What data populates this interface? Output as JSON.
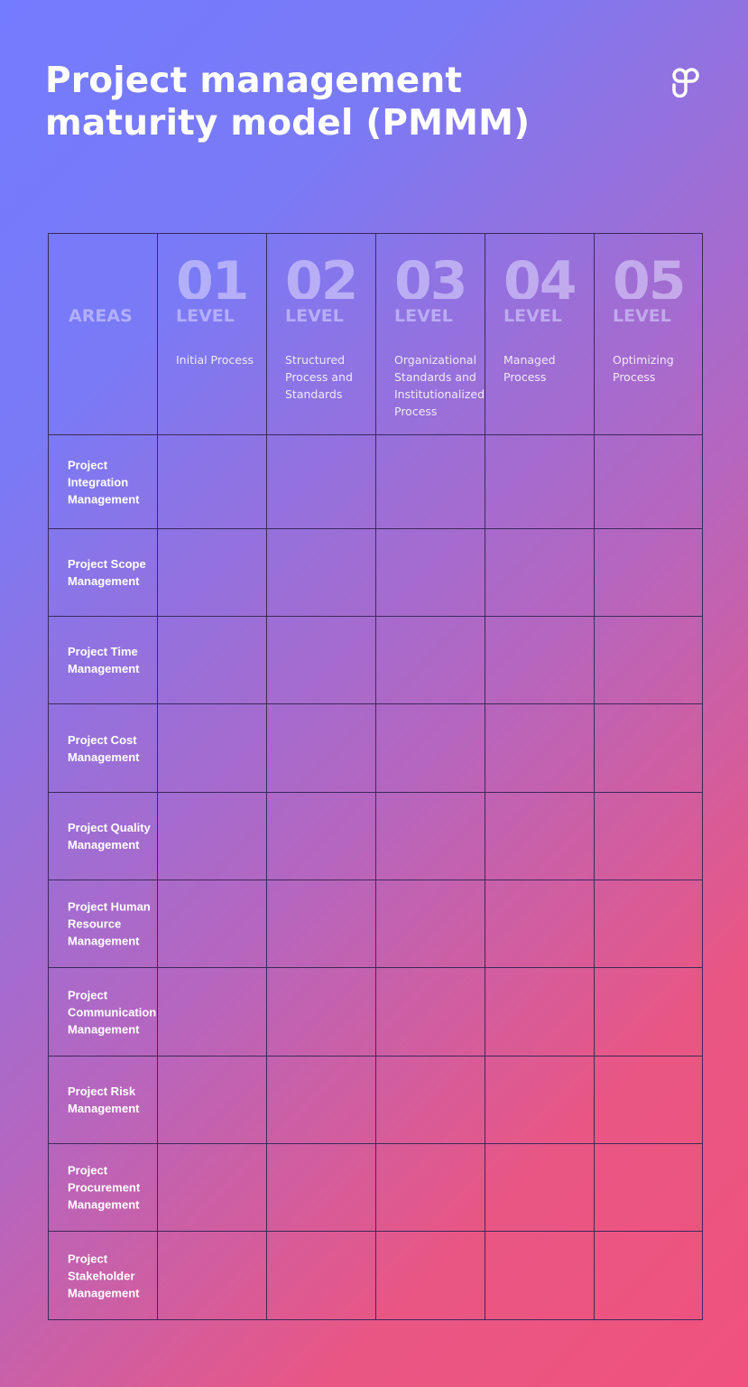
{
  "title_line1": "Project management",
  "title_line2": "maturity model (PMMM)",
  "header": {
    "areas_label": "AREAS",
    "levels": [
      {
        "number": "01",
        "label": "LEVEL",
        "description": "Initial Process"
      },
      {
        "number": "02",
        "label": "LEVEL",
        "description": "Structured Process and Standards"
      },
      {
        "number": "03",
        "label": "LEVEL",
        "description": "Organizational Standards and Institutionalized Process"
      },
      {
        "number": "04",
        "label": "LEVEL",
        "description": "Managed Process"
      },
      {
        "number": "05",
        "label": "LEVEL",
        "description": "Optimizing Process"
      }
    ]
  },
  "areas": [
    "Project Integration Management",
    "Project Scope Management",
    "Project Time Management",
    "Project Cost Management",
    "Project Quality Management",
    "Project Human Resource Management",
    "Project Communication Management",
    "Project Risk Management",
    "Project Procurement Management",
    "Project Stakeholder Management"
  ],
  "colors": {
    "gradient_start": "#737bfe",
    "gradient_end": "#f0527d",
    "grid_line": "#3a2a5a"
  },
  "logo_icon": "brand-logo-loops"
}
